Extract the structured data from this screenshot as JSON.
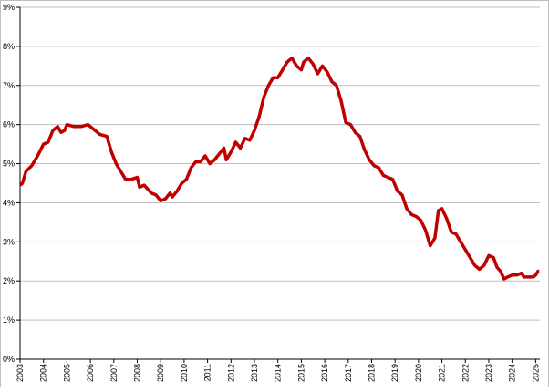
{
  "chart_data": {
    "type": "line",
    "x": [
      2003.0,
      2003.1,
      2003.25,
      2003.5,
      2003.75,
      2004.0,
      2004.2,
      2004.4,
      2004.6,
      2004.75,
      2004.9,
      2005.0,
      2005.3,
      2005.6,
      2005.9,
      2006.1,
      2006.4,
      2006.7,
      2006.9,
      2007.1,
      2007.3,
      2007.5,
      2007.75,
      2008.0,
      2008.1,
      2008.3,
      2008.6,
      2008.8,
      2009.0,
      2009.2,
      2009.4,
      2009.5,
      2009.7,
      2009.9,
      2010.1,
      2010.3,
      2010.5,
      2010.7,
      2010.9,
      2011.1,
      2011.3,
      2011.5,
      2011.7,
      2011.8,
      2012.0,
      2012.2,
      2012.4,
      2012.6,
      2012.8,
      2013.0,
      2013.2,
      2013.4,
      2013.6,
      2013.8,
      2014.0,
      2014.2,
      2014.4,
      2014.6,
      2014.8,
      2015.0,
      2015.1,
      2015.3,
      2015.5,
      2015.7,
      2015.9,
      2016.1,
      2016.3,
      2016.5,
      2016.7,
      2016.9,
      2017.1,
      2017.3,
      2017.5,
      2017.7,
      2017.9,
      2018.1,
      2018.3,
      2018.5,
      2018.7,
      2018.9,
      2019.1,
      2019.3,
      2019.5,
      2019.7,
      2019.9,
      2020.1,
      2020.3,
      2020.5,
      2020.7,
      2020.85,
      2021.0,
      2021.2,
      2021.4,
      2021.6,
      2021.8,
      2022.0,
      2022.2,
      2022.4,
      2022.6,
      2022.8,
      2023.0,
      2023.2,
      2023.35,
      2023.5,
      2023.65,
      2023.8,
      2024.0,
      2024.2,
      2024.4,
      2024.5,
      2024.7,
      2024.9,
      2025.0,
      2025.1,
      2025.15
    ],
    "values": [
      4.45,
      4.5,
      4.8,
      4.95,
      5.2,
      5.5,
      5.55,
      5.85,
      5.95,
      5.8,
      5.85,
      6.0,
      5.95,
      5.95,
      6.0,
      5.9,
      5.75,
      5.7,
      5.3,
      5.0,
      4.8,
      4.6,
      4.6,
      4.65,
      4.4,
      4.45,
      4.25,
      4.2,
      4.05,
      4.1,
      4.25,
      4.15,
      4.3,
      4.5,
      4.6,
      4.9,
      5.05,
      5.05,
      5.2,
      5.0,
      5.1,
      5.25,
      5.4,
      5.1,
      5.3,
      5.55,
      5.4,
      5.65,
      5.6,
      5.85,
      6.2,
      6.7,
      7.0,
      7.2,
      7.2,
      7.4,
      7.6,
      7.7,
      7.5,
      7.4,
      7.6,
      7.7,
      7.55,
      7.3,
      7.5,
      7.35,
      7.1,
      7.0,
      6.6,
      6.05,
      6.0,
      5.8,
      5.7,
      5.35,
      5.1,
      4.95,
      4.9,
      4.7,
      4.65,
      4.6,
      4.3,
      4.2,
      3.85,
      3.7,
      3.65,
      3.55,
      3.3,
      2.9,
      3.1,
      3.8,
      3.85,
      3.6,
      3.25,
      3.2,
      3.0,
      2.8,
      2.6,
      2.4,
      2.3,
      2.4,
      2.65,
      2.6,
      2.35,
      2.25,
      2.05,
      2.1,
      2.15,
      2.15,
      2.2,
      2.1,
      2.1,
      2.1,
      2.15,
      2.25,
      2.25
    ],
    "color": "#c00000",
    "xlim": [
      2003,
      2025.18
    ],
    "xticks": [
      2003,
      2004,
      2005,
      2006,
      2007,
      2008,
      2009,
      2010,
      2011,
      2012,
      2013,
      2014,
      2015,
      2016,
      2017,
      2018,
      2019,
      2020,
      2021,
      2022,
      2023,
      2024,
      2025
    ],
    "ylim": [
      0,
      9
    ],
    "yticks": [
      {
        "value": 0,
        "label": "0%"
      },
      {
        "value": 1,
        "label": "1%"
      },
      {
        "value": 2,
        "label": "2%"
      },
      {
        "value": 3,
        "label": "3%"
      },
      {
        "value": 4,
        "label": "4%"
      },
      {
        "value": 5,
        "label": "5%"
      },
      {
        "value": 6,
        "label": "6%"
      },
      {
        "value": 7,
        "label": "7%"
      },
      {
        "value": 8,
        "label": "8%"
      },
      {
        "value": 9,
        "label": "9%"
      }
    ],
    "grid": true
  }
}
